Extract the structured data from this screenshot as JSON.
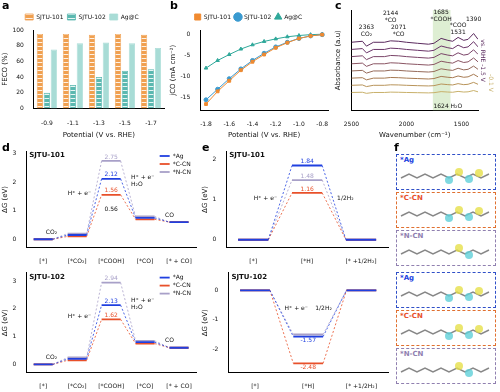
{
  "chart_data": [
    {
      "panel": "a",
      "type": "bar",
      "categories": [
        "-0.9",
        "-1.1",
        "-1.3",
        "-1.5",
        "-1.7"
      ],
      "x_label": "Potential (V vs. RHE)",
      "y_label": "FECO (%)",
      "ylim": [
        0,
        100
      ],
      "yticks": [
        0,
        20,
        40,
        60,
        80,
        100
      ],
      "grid": false,
      "legend": "top",
      "series": [
        {
          "name": "SJTU-101",
          "color": "#f0a050",
          "values": [
            95,
            95,
            94,
            95,
            94
          ]
        },
        {
          "name": "SJTU-102",
          "color": "#5bb8b0",
          "values": [
            20,
            30,
            40,
            48,
            50
          ]
        },
        {
          "name": "Ag@C",
          "color": "#a8dcd6",
          "values": [
            75,
            83,
            84,
            83,
            77
          ]
        }
      ]
    },
    {
      "panel": "b",
      "type": "line",
      "x": [
        -1.8,
        -1.7,
        -1.6,
        -1.5,
        -1.4,
        -1.3,
        -1.2,
        -1.1,
        -1.0,
        -0.9,
        -0.8
      ],
      "x_label": "Potential (V vs. RHE)",
      "y_label": "jCO (mA cm⁻²)",
      "xlim": [
        -1.85,
        -0.75
      ],
      "xticks": [
        -1.8,
        -1.6,
        -1.4,
        -1.2,
        {
          "value": -1.0,
          "label": "-1.0"
        },
        -0.8
      ],
      "ylim": [
        -18,
        1
      ],
      "yticks": [
        -15,
        -10,
        -5,
        0
      ],
      "grid": false,
      "legend": "top",
      "series": [
        {
          "name": "SJTU-101",
          "color": "#f08a30",
          "marker": "square",
          "values": [
            -16.5,
            -13.5,
            -11,
            -8.5,
            -6.5,
            -4.8,
            -3.2,
            -2,
            -1,
            -0.4,
            -0.1
          ]
        },
        {
          "name": "SJTU-102",
          "color": "#3a9ad0",
          "marker": "circle",
          "values": [
            -15.5,
            -13,
            -10.5,
            -8.2,
            -6.2,
            -4.5,
            -3,
            -1.9,
            -1,
            -0.4,
            -0.1
          ]
        },
        {
          "name": "Ag@C",
          "color": "#2fa89a",
          "marker": "triangle",
          "values": [
            -8,
            -6.2,
            -4.8,
            -3.5,
            -2.5,
            -1.7,
            -1.1,
            -0.6,
            -0.3,
            -0.1,
            0
          ]
        }
      ]
    },
    {
      "panel": "c",
      "type": "line",
      "x": [
        2500,
        2400,
        2363,
        2300,
        2200,
        2144,
        2071,
        2000,
        1900,
        1800,
        1750,
        1685,
        1624,
        1580,
        1531,
        1480,
        1440,
        1390,
        1350
      ],
      "x_label": "Wavenumber (cm⁻¹)",
      "y_label": "Absorbance (a.u)",
      "xlim": [
        2500,
        1350
      ],
      "xticks": [
        2500,
        2000,
        1500
      ],
      "ylim": [
        -2,
        12
      ],
      "tick_labels": "x",
      "grid": false,
      "shaded_range": [
        1600,
        1760
      ],
      "annotations": [
        {
          "x": 2363,
          "y": 8.2,
          "text": [
            "2363",
            "CO₂"
          ]
        },
        {
          "x": 2144,
          "y": 10.1,
          "text": [
            "2144",
            "*CO"
          ]
        },
        {
          "x": 2071,
          "y": 8.2,
          "text": [
            "2071",
            "*CO"
          ]
        },
        {
          "x": 1685,
          "y": 10.2,
          "text": [
            "1685",
            "*COOH"
          ]
        },
        {
          "x": 1624,
          "y": -1.9,
          "text": [
            "1624 H₂O"
          ]
        },
        {
          "x": 1531,
          "y": 8.4,
          "text": [
            "*COO",
            "1531"
          ]
        },
        {
          "x": 1390,
          "y": 10.2,
          "text": [
            "1390"
          ]
        }
      ],
      "series": [
        {
          "name": "-0.1 V",
          "color": "#c8b06a",
          "values": [
            0.5,
            0.53,
            0.38,
            0.5,
            0.5,
            0.55,
            0.53,
            0.5,
            0.47,
            0.44,
            0.47,
            0.62,
            0.56,
            0.53,
            0.65,
            0.56,
            0.59,
            0.77,
            0.59
          ]
        },
        {
          "color": "#b8945a",
          "values": [
            1.5,
            1.55,
            1.32,
            1.5,
            1.5,
            1.57,
            1.55,
            1.5,
            1.45,
            1.41,
            1.45,
            1.68,
            1.59,
            1.55,
            1.73,
            1.59,
            1.64,
            1.91,
            1.64
          ]
        },
        {
          "color": "#a67a52",
          "values": [
            2.5,
            2.56,
            2.26,
            2.5,
            2.5,
            2.59,
            2.56,
            2.5,
            2.44,
            2.38,
            2.44,
            2.74,
            2.62,
            2.56,
            2.8,
            2.62,
            2.68,
            3.04,
            2.68
          ]
        },
        {
          "color": "#956a5a",
          "values": [
            3.5,
            3.58,
            3.2,
            3.5,
            3.5,
            3.61,
            3.58,
            3.5,
            3.42,
            3.35,
            3.42,
            3.8,
            3.65,
            3.58,
            3.88,
            3.65,
            3.73,
            4.18,
            3.73
          ]
        },
        {
          "color": "#8a5563",
          "values": [
            4.5,
            4.59,
            4.14,
            4.5,
            4.5,
            4.64,
            4.59,
            4.5,
            4.41,
            4.32,
            4.41,
            4.86,
            4.68,
            4.59,
            4.95,
            4.68,
            4.77,
            5.31,
            4.77
          ]
        },
        {
          "color": "#7a4468",
          "values": [
            5.5,
            5.61,
            5.08,
            5.5,
            5.5,
            5.66,
            5.61,
            5.5,
            5.39,
            5.29,
            5.39,
            5.92,
            5.71,
            5.61,
            6.03,
            5.71,
            5.82,
            6.45,
            5.82
          ]
        },
        {
          "color": "#6a3468",
          "values": [
            6.5,
            6.62,
            6.02,
            6.5,
            6.5,
            6.68,
            6.62,
            6.5,
            6.38,
            6.26,
            6.38,
            6.98,
            6.74,
            6.62,
            7.1,
            6.74,
            6.86,
            7.58,
            6.86
          ]
        },
        {
          "name": "vs. RHE -1.5 V",
          "color": "#5a2a5e",
          "values": [
            7.5,
            7.64,
            6.96,
            7.5,
            7.5,
            7.7,
            7.64,
            7.5,
            7.36,
            7.23,
            7.36,
            8.04,
            7.77,
            7.64,
            8.18,
            7.77,
            7.91,
            8.72,
            7.91
          ]
        }
      ]
    },
    {
      "panel": "d",
      "type": "energy_diagram",
      "title": "SJTU-101",
      "categories": [
        "[*]",
        "[*CO₂]",
        "[*COOH]",
        "[*CO]",
        "[* + CO]"
      ],
      "y_label": "ΔG (eV)",
      "ylim": [
        -0.3,
        3.1
      ],
      "yticks": [
        0,
        1,
        2,
        3
      ],
      "grid": false,
      "legend": "upper right",
      "step_labels": [
        [
          "CO₂"
        ],
        [
          "H⁺ + e⁻"
        ],
        [
          "H⁺ + e⁻",
          "H₂O"
        ],
        [
          "CO"
        ]
      ],
      "annotations": [
        {
          "x": 2,
          "y": 1.05,
          "text": [
            "0.56"
          ]
        }
      ],
      "series": [
        {
          "name": "*Ag",
          "color": "#2040e0",
          "values": [
            0,
            0.15,
            2.12,
            0.75,
            0.6
          ],
          "value_labels": [
            null,
            null,
            "2.12",
            null,
            null
          ]
        },
        {
          "name": "*C-CN",
          "color": "#e8502a",
          "values": [
            0,
            0.1,
            1.56,
            0.7,
            0.6
          ],
          "value_labels": [
            null,
            null,
            "1.56",
            null,
            null
          ]
        },
        {
          "name": "*N-CN",
          "color": "#a8a0c8",
          "values": [
            0,
            0.2,
            2.75,
            0.8,
            0.6
          ],
          "value_labels": [
            null,
            null,
            "2.75",
            null,
            null
          ]
        }
      ]
    },
    {
      "type": "energy_diagram",
      "title": "SJTU-102",
      "categories": [
        "[*]",
        "[*CO₂]",
        "[*COOH]",
        "[*CO]",
        "[* + CO]"
      ],
      "y_label": "ΔG (eV)",
      "ylim": [
        -0.3,
        3.3
      ],
      "yticks": [
        0,
        1,
        2,
        3
      ],
      "grid": false,
      "legend": "upper right",
      "step_labels": [
        [
          "CO₂"
        ],
        [
          "H⁺ + e⁻"
        ],
        [
          "H⁺ + e⁻",
          "H₂O"
        ],
        [
          "CO"
        ]
      ],
      "series": [
        {
          "name": "*Ag",
          "color": "#2040e0",
          "values": [
            0,
            0.2,
            2.13,
            0.8,
            0.6
          ],
          "value_labels": [
            null,
            null,
            "2.13",
            null,
            null
          ]
        },
        {
          "name": "*C-CN",
          "color": "#e8502a",
          "values": [
            0,
            0.15,
            1.62,
            0.75,
            0.6
          ],
          "value_labels": [
            null,
            null,
            "1.62",
            null,
            null
          ]
        },
        {
          "name": "*N-CN",
          "color": "#a8a0c8",
          "values": [
            0,
            0.25,
            2.94,
            0.85,
            0.6
          ],
          "value_labels": [
            null,
            null,
            "2.94",
            null,
            null
          ]
        }
      ]
    },
    {
      "panel": "e",
      "type": "energy_diagram",
      "title": "SJTU-101",
      "categories": [
        "[*]",
        "[*H]",
        "[* +1/2H₂]"
      ],
      "y_label": "ΔG (eV)",
      "ylim": [
        -0.2,
        2.2
      ],
      "yticks": [
        0,
        1,
        2
      ],
      "grid": false,
      "step_labels": [
        [
          "H⁺ + e⁻"
        ],
        [
          "1/2H₂"
        ]
      ],
      "series": [
        {
          "color": "#2040e0",
          "values": [
            0,
            1.84,
            0
          ],
          "value_labels": [
            null,
            "1.84",
            null
          ]
        },
        {
          "color": "#e8502a",
          "values": [
            0,
            1.16,
            0
          ],
          "value_labels": [
            null,
            "1.16",
            null
          ]
        },
        {
          "color": "#a8a0c8",
          "values": [
            0,
            1.48,
            0
          ],
          "value_labels": [
            null,
            "1.48",
            null
          ]
        }
      ]
    },
    {
      "type": "energy_diagram",
      "title": "SJTU-102",
      "categories": [
        "[*]",
        "[*H]",
        "[* +1/2H₂]"
      ],
      "y_label": "ΔG (eV)",
      "ylim": [
        -2.8,
        0.6
      ],
      "yticks": [
        -2,
        -1,
        0
      ],
      "grid": false,
      "step_labels": [
        [
          "H⁺ + e⁻"
        ],
        [
          "1/2H₂"
        ]
      ],
      "series": [
        {
          "color": "#2040e0",
          "values": [
            0,
            -1.57,
            0
          ],
          "value_labels": [
            null,
            "-1.57",
            null
          ]
        },
        {
          "color": "#e8502a",
          "values": [
            0,
            -2.48,
            0
          ],
          "value_labels": [
            null,
            "-2.48",
            null
          ]
        },
        {
          "color": "#a8a0c8",
          "values": [
            0,
            -1.5,
            0
          ],
          "value_labels": [
            null,
            null,
            null
          ]
        }
      ]
    }
  ],
  "panel_f": {
    "panel": "f",
    "groups": [
      [
        "*Ag",
        "*C-CN",
        "*N-CN"
      ],
      [
        "*Ag",
        "*C-CN",
        "*N-CN"
      ]
    ]
  }
}
